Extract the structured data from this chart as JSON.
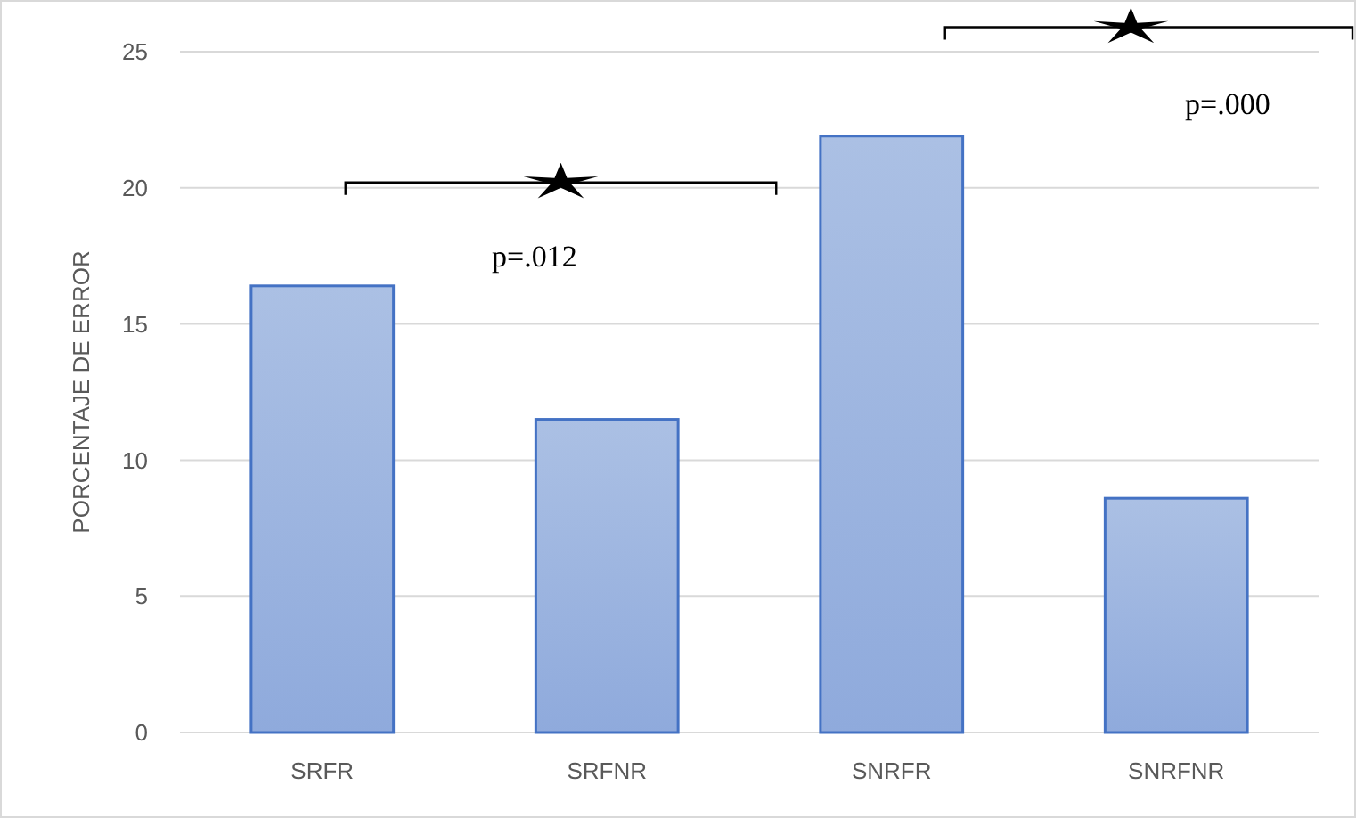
{
  "chart_data": {
    "type": "bar",
    "ylabel": "PORCENTAJE DE ERROR",
    "categories": [
      "SRFR",
      "SRFNR",
      "SNRFR",
      "SNRFNR"
    ],
    "values": [
      16.4,
      11.5,
      21.9,
      8.6
    ],
    "color": "#4472c4",
    "ylim": [
      0,
      25
    ],
    "yticks": [
      0,
      5,
      10,
      15,
      20,
      25
    ],
    "grid": "y",
    "annotations": [
      "p=.012",
      "p=.000"
    ]
  }
}
